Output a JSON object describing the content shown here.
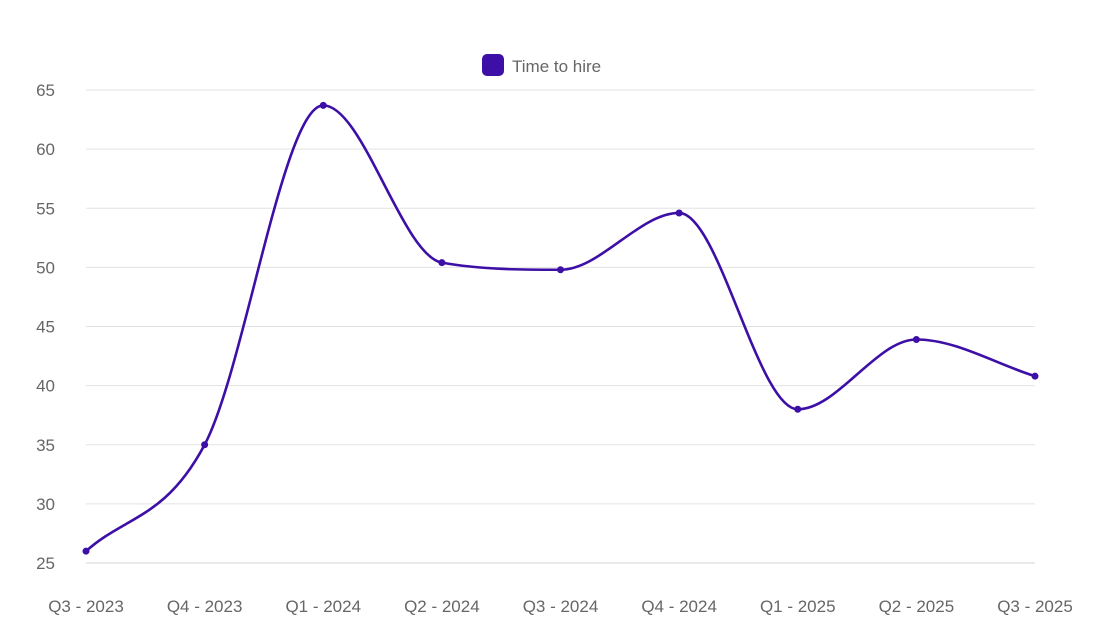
{
  "chart_data": {
    "type": "line",
    "title": "",
    "xlabel": "",
    "ylabel": "",
    "categories": [
      "Q3 - 2023",
      "Q4 - 2023",
      "Q1 - 2024",
      "Q2 - 2024",
      "Q3 - 2024",
      "Q4 - 2024",
      "Q1 - 2025",
      "Q2 - 2025",
      "Q3 - 2025"
    ],
    "series": [
      {
        "name": "Time to hire",
        "color": "#3d0fa6",
        "values": [
          26,
          35,
          63.7,
          50.4,
          49.8,
          54.6,
          38,
          43.9,
          40.8
        ]
      }
    ],
    "ylim": [
      25,
      65
    ],
    "yticks": [
      25,
      30,
      35,
      40,
      45,
      50,
      55,
      60,
      65
    ],
    "grid": true,
    "legend": "top-center",
    "curve": "smooth"
  }
}
